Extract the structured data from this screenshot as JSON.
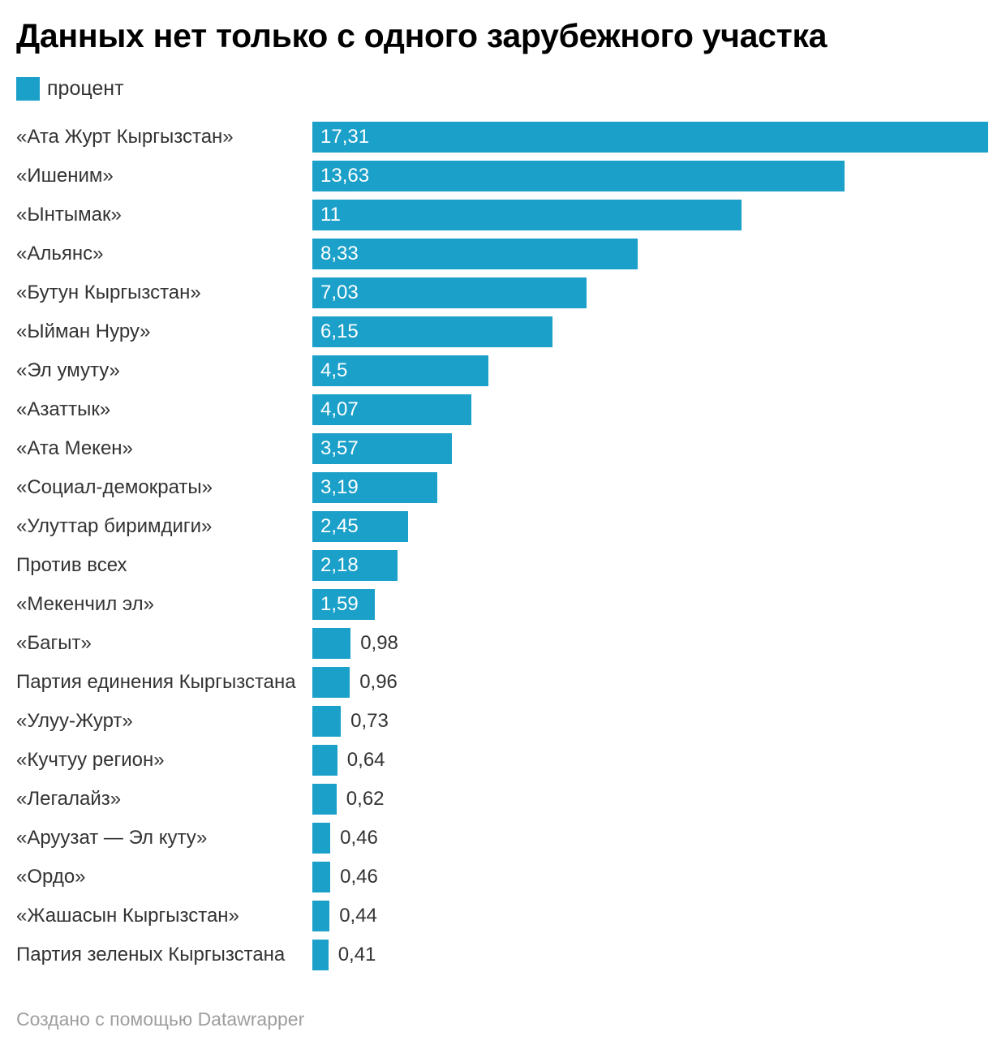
{
  "title": "Данных нет только с одного зарубежного участка",
  "legend": {
    "label": "процент",
    "swatch_color": "#1ba0c9"
  },
  "footer": {
    "text": "Создано с помощью Datawrapper"
  },
  "colors": {
    "bar": "#1ba0c9",
    "label_text": "#333333",
    "value_inside": "#ffffff",
    "value_outside": "#333333",
    "title_text": "#000000",
    "footer_text": "#9e9e9e"
  },
  "chart_data": {
    "type": "bar",
    "orientation": "horizontal",
    "title": "Данных нет только с одного зарубежного участка",
    "series_name": "процент",
    "legend_position": "top-left",
    "grid": false,
    "xlim": [
      0,
      17.31
    ],
    "categories": [
      "«Ата Журт Кыргызстан»",
      "«Ишеним»",
      "«Ынтымак»",
      "«Альянс»",
      "«Бутун Кыргызстан»",
      "«Ыйман Нуру»",
      "«Эл умуту»",
      "«Азаттык»",
      "«Ата Мекен»",
      "«Социал-демократы»",
      "«Улуттар биримдиги»",
      "Против всех",
      "«Мекенчил эл»",
      "«Багыт»",
      "Партия единения Кыргызстана",
      "«Улуу-Журт»",
      "«Кучтуу регион»",
      "«Легалайз»",
      "«Аруузат — Эл куту»",
      "«Ордо»",
      "«Жашасын Кыргызстан»",
      "Партия зеленых Кыргызстана"
    ],
    "values": [
      17.31,
      13.63,
      11,
      8.33,
      7.03,
      6.15,
      4.5,
      4.07,
      3.57,
      3.19,
      2.45,
      2.18,
      1.59,
      0.98,
      0.96,
      0.73,
      0.64,
      0.62,
      0.46,
      0.46,
      0.44,
      0.41
    ],
    "value_labels": [
      "17,31",
      "13,63",
      "11",
      "8,33",
      "7,03",
      "6,15",
      "4,5",
      "4,07",
      "3,57",
      "3,19",
      "2,45",
      "2,18",
      "1,59",
      "0,98",
      "0,96",
      "0,73",
      "0,64",
      "0,62",
      "0,46",
      "0,46",
      "0,44",
      "0,41"
    ]
  }
}
